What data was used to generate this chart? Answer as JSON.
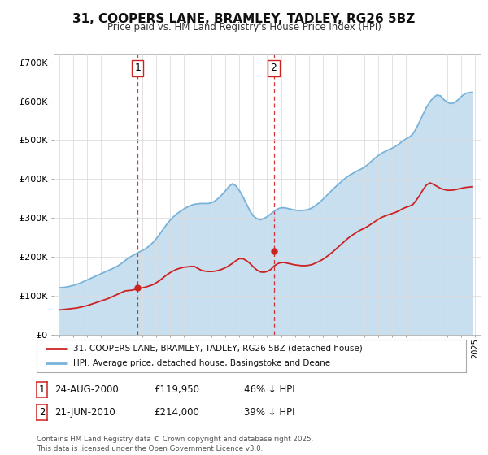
{
  "title": "31, COOPERS LANE, BRAMLEY, TADLEY, RG26 5BZ",
  "subtitle": "Price paid vs. HM Land Registry's House Price Index (HPI)",
  "background_color": "#ffffff",
  "plot_bg_color": "#ffffff",
  "grid_color": "#dddddd",
  "hpi_color": "#7ab3d9",
  "hpi_fill_color": "#c8dff0",
  "price_color": "#cc2222",
  "vline_color": "#cc2222",
  "ylim": [
    0,
    720000
  ],
  "yticks": [
    0,
    100000,
    200000,
    300000,
    400000,
    500000,
    600000,
    700000
  ],
  "ytick_labels": [
    "£0",
    "£100K",
    "£200K",
    "£300K",
    "£400K",
    "£500K",
    "£600K",
    "£700K"
  ],
  "sale1_year": 2000.65,
  "sale2_year": 2010.47,
  "sale1_price": 119950,
  "sale2_price": 214000,
  "sale1_label": "24-AUG-2000",
  "sale2_label": "21-JUN-2010",
  "sale1_pct": "46% ↓ HPI",
  "sale2_pct": "39% ↓ HPI",
  "legend_line1": "31, COOPERS LANE, BRAMLEY, TADLEY, RG26 5BZ (detached house)",
  "legend_line2": "HPI: Average price, detached house, Basingstoke and Deane",
  "footnote": "Contains HM Land Registry data © Crown copyright and database right 2025.\nThis data is licensed under the Open Government Licence v3.0.",
  "hpi_years": [
    1995.0,
    1995.25,
    1995.5,
    1995.75,
    1996.0,
    1996.25,
    1996.5,
    1996.75,
    1997.0,
    1997.25,
    1997.5,
    1997.75,
    1998.0,
    1998.25,
    1998.5,
    1998.75,
    1999.0,
    1999.25,
    1999.5,
    1999.75,
    2000.0,
    2000.25,
    2000.5,
    2000.75,
    2001.0,
    2001.25,
    2001.5,
    2001.75,
    2002.0,
    2002.25,
    2002.5,
    2002.75,
    2003.0,
    2003.25,
    2003.5,
    2003.75,
    2004.0,
    2004.25,
    2004.5,
    2004.75,
    2005.0,
    2005.25,
    2005.5,
    2005.75,
    2006.0,
    2006.25,
    2006.5,
    2006.75,
    2007.0,
    2007.25,
    2007.5,
    2007.75,
    2008.0,
    2008.25,
    2008.5,
    2008.75,
    2009.0,
    2009.25,
    2009.5,
    2009.75,
    2010.0,
    2010.25,
    2010.5,
    2010.75,
    2011.0,
    2011.25,
    2011.5,
    2011.75,
    2012.0,
    2012.25,
    2012.5,
    2012.75,
    2013.0,
    2013.25,
    2013.5,
    2013.75,
    2014.0,
    2014.25,
    2014.5,
    2014.75,
    2015.0,
    2015.25,
    2015.5,
    2015.75,
    2016.0,
    2016.25,
    2016.5,
    2016.75,
    2017.0,
    2017.25,
    2017.5,
    2017.75,
    2018.0,
    2018.25,
    2018.5,
    2018.75,
    2019.0,
    2019.25,
    2019.5,
    2019.75,
    2020.0,
    2020.25,
    2020.5,
    2020.75,
    2021.0,
    2021.25,
    2021.5,
    2021.75,
    2022.0,
    2022.25,
    2022.5,
    2022.75,
    2023.0,
    2023.25,
    2023.5,
    2023.75,
    2024.0,
    2024.25,
    2024.5,
    2024.75
  ],
  "hpi_values": [
    120000,
    121000,
    122000,
    124000,
    126000,
    129000,
    132000,
    136000,
    140000,
    144000,
    148000,
    152000,
    156000,
    160000,
    164000,
    168000,
    172000,
    177000,
    183000,
    190000,
    197000,
    202000,
    207000,
    212000,
    216000,
    221000,
    228000,
    236000,
    246000,
    258000,
    271000,
    283000,
    294000,
    303000,
    311000,
    317000,
    323000,
    328000,
    332000,
    335000,
    336000,
    337000,
    337000,
    337000,
    339000,
    344000,
    351000,
    360000,
    370000,
    381000,
    388000,
    382000,
    370000,
    354000,
    336000,
    318000,
    305000,
    298000,
    295000,
    298000,
    303000,
    310000,
    317000,
    323000,
    326000,
    326000,
    324000,
    322000,
    320000,
    319000,
    319000,
    320000,
    322000,
    326000,
    332000,
    339000,
    347000,
    356000,
    365000,
    374000,
    382000,
    390000,
    398000,
    405000,
    411000,
    416000,
    421000,
    425000,
    430000,
    437000,
    445000,
    453000,
    460000,
    466000,
    471000,
    475000,
    479000,
    484000,
    490000,
    497000,
    503000,
    508000,
    515000,
    530000,
    548000,
    567000,
    585000,
    599000,
    610000,
    616000,
    614000,
    604000,
    597000,
    594000,
    596000,
    603000,
    612000,
    619000,
    622000,
    623000
  ],
  "price_years": [
    1995.0,
    1995.25,
    1995.5,
    1995.75,
    1996.0,
    1996.25,
    1996.5,
    1996.75,
    1997.0,
    1997.25,
    1997.5,
    1997.75,
    1998.0,
    1998.25,
    1998.5,
    1998.75,
    1999.0,
    1999.25,
    1999.5,
    1999.75,
    2000.0,
    2000.25,
    2000.5,
    2000.75,
    2001.0,
    2001.25,
    2001.5,
    2001.75,
    2002.0,
    2002.25,
    2002.5,
    2002.75,
    2003.0,
    2003.25,
    2003.5,
    2003.75,
    2004.0,
    2004.25,
    2004.5,
    2004.75,
    2005.0,
    2005.25,
    2005.5,
    2005.75,
    2006.0,
    2006.25,
    2006.5,
    2006.75,
    2007.0,
    2007.25,
    2007.5,
    2007.75,
    2008.0,
    2008.25,
    2008.5,
    2008.75,
    2009.0,
    2009.25,
    2009.5,
    2009.75,
    2010.0,
    2010.25,
    2010.5,
    2010.75,
    2011.0,
    2011.25,
    2011.5,
    2011.75,
    2012.0,
    2012.25,
    2012.5,
    2012.75,
    2013.0,
    2013.25,
    2013.5,
    2013.75,
    2014.0,
    2014.25,
    2014.5,
    2014.75,
    2015.0,
    2015.25,
    2015.5,
    2015.75,
    2016.0,
    2016.25,
    2016.5,
    2016.75,
    2017.0,
    2017.25,
    2017.5,
    2017.75,
    2018.0,
    2018.25,
    2018.5,
    2018.75,
    2019.0,
    2019.25,
    2019.5,
    2019.75,
    2020.0,
    2020.25,
    2020.5,
    2020.75,
    2021.0,
    2021.25,
    2021.5,
    2021.75,
    2022.0,
    2022.25,
    2022.5,
    2022.75,
    2023.0,
    2023.25,
    2023.5,
    2023.75,
    2024.0,
    2024.25,
    2024.5,
    2024.75
  ],
  "price_values": [
    63000,
    64000,
    65000,
    66000,
    67000,
    68000,
    70000,
    72000,
    74000,
    77000,
    80000,
    83000,
    86000,
    89000,
    92000,
    96000,
    100000,
    104000,
    108000,
    112000,
    113000,
    114000,
    116000,
    118000,
    120000,
    122000,
    125000,
    128000,
    133000,
    139000,
    146000,
    153000,
    159000,
    164000,
    168000,
    171000,
    173000,
    174000,
    175000,
    175000,
    170000,
    165000,
    163000,
    162000,
    162000,
    163000,
    165000,
    168000,
    172000,
    177000,
    183000,
    190000,
    195000,
    195000,
    190000,
    183000,
    174000,
    166000,
    161000,
    160000,
    162000,
    167000,
    176000,
    182000,
    185000,
    185000,
    183000,
    181000,
    179000,
    178000,
    177000,
    177000,
    178000,
    180000,
    184000,
    188000,
    193000,
    199000,
    206000,
    213000,
    221000,
    229000,
    237000,
    245000,
    252000,
    258000,
    264000,
    269000,
    273000,
    278000,
    284000,
    290000,
    296000,
    301000,
    305000,
    308000,
    311000,
    314000,
    318000,
    323000,
    327000,
    330000,
    334000,
    345000,
    358000,
    373000,
    385000,
    390000,
    386000,
    381000,
    376000,
    373000,
    371000,
    371000,
    372000,
    374000,
    376000,
    378000,
    379000,
    380000
  ]
}
